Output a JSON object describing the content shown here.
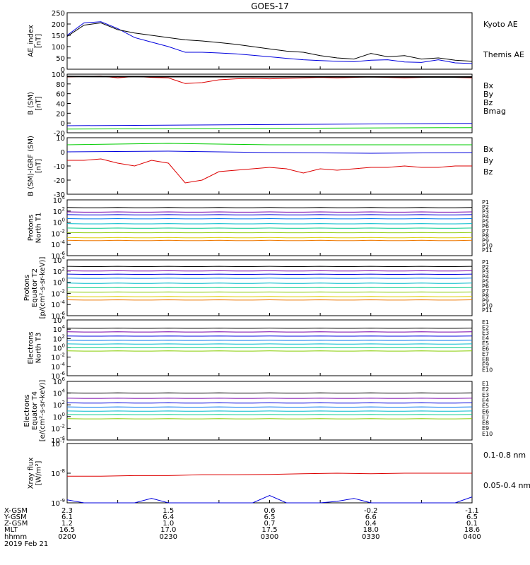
{
  "title": "GOES-17",
  "colors": {
    "black": "#000000",
    "blue": "#0000dd",
    "green": "#00cc00",
    "red": "#dd0000",
    "p": [
      "#000000",
      "#7700aa",
      "#0000dd",
      "#0077ee",
      "#00bbcc",
      "#00cc88",
      "#88cc00",
      "#ddcc00",
      "#ee7700",
      "#ee0000",
      "#aa0000"
    ],
    "e": [
      "#000000",
      "#7700aa",
      "#0000dd",
      "#0077ee",
      "#00bbcc",
      "#00cc88",
      "#88cc00",
      "#ddcc00",
      "#ee7700",
      "#ee0000"
    ]
  },
  "chart_data": [
    {
      "type": "line",
      "ylabel": [
        "AE_index",
        "[nT]"
      ],
      "ylim": [
        0,
        250
      ],
      "yticks": [
        "0",
        "50",
        "100",
        "150",
        "200",
        "250"
      ],
      "series": [
        {
          "name": "Kyoto AE",
          "color": "blue",
          "x": [
            0,
            5,
            10,
            15,
            20,
            25,
            30,
            35,
            40,
            45,
            50,
            55,
            60,
            65,
            70,
            75,
            80,
            85,
            90,
            95,
            100,
            105,
            110,
            115,
            120
          ],
          "y": [
            150,
            205,
            210,
            180,
            140,
            120,
            100,
            75,
            75,
            72,
            68,
            62,
            55,
            48,
            42,
            38,
            35,
            33,
            40,
            42,
            32,
            30,
            42,
            28,
            25
          ]
        },
        {
          "name": "Themis AE",
          "color": "black",
          "x": [
            0,
            5,
            10,
            15,
            20,
            25,
            30,
            35,
            40,
            45,
            50,
            55,
            60,
            65,
            70,
            75,
            80,
            85,
            90,
            95,
            100,
            105,
            110,
            115,
            120
          ],
          "y": [
            145,
            195,
            205,
            175,
            160,
            150,
            140,
            130,
            125,
            118,
            110,
            100,
            90,
            80,
            75,
            60,
            50,
            45,
            70,
            55,
            60,
            45,
            50,
            40,
            35
          ]
        }
      ]
    },
    {
      "type": "line",
      "ylabel": [
        "B (SM)",
        "[nT]"
      ],
      "ylim": [
        -25,
        100
      ],
      "yticks": [
        "-20",
        "0",
        "20",
        "40",
        "60",
        "80",
        "100"
      ],
      "series": [
        {
          "name": "Bx",
          "color": "blue",
          "x": [
            0,
            120
          ],
          "y": [
            -10,
            -5
          ]
        },
        {
          "name": "By",
          "color": "green",
          "x": [
            0,
            120
          ],
          "y": [
            -17,
            -14
          ]
        },
        {
          "name": "Bz",
          "color": "red",
          "x": [
            0,
            5,
            10,
            15,
            20,
            25,
            30,
            35,
            40,
            45,
            50,
            55,
            60,
            65,
            70,
            75,
            80,
            85,
            90,
            95,
            100,
            105,
            110,
            115,
            120
          ],
          "y": [
            94,
            95,
            96,
            92,
            95,
            93,
            92,
            80,
            82,
            88,
            90,
            91,
            90,
            91,
            92,
            93,
            92,
            93,
            94,
            93,
            92,
            93,
            94,
            93,
            92
          ]
        },
        {
          "name": "Bmag",
          "color": "black",
          "x": [
            0,
            120
          ],
          "y": [
            95,
            94
          ]
        }
      ]
    },
    {
      "type": "line",
      "ylabel": [
        "B (SM)-IGRF (SM)",
        "[nT]"
      ],
      "ylim": [
        -30,
        10
      ],
      "yticks": [
        "-30",
        "-20",
        "-10",
        "0",
        "10"
      ],
      "series": [
        {
          "name": "Bx",
          "color": "blue",
          "x": [
            0,
            30,
            60,
            90,
            120
          ],
          "y": [
            0,
            0.5,
            -0.5,
            -1,
            -0.5
          ]
        },
        {
          "name": "By",
          "color": "green",
          "x": [
            0,
            30,
            60,
            90,
            120
          ],
          "y": [
            5,
            6,
            5,
            5,
            5
          ]
        },
        {
          "name": "Bz",
          "color": "red",
          "x": [
            0,
            5,
            10,
            15,
            20,
            25,
            30,
            35,
            40,
            45,
            50,
            55,
            60,
            65,
            70,
            75,
            80,
            85,
            90,
            95,
            100,
            105,
            110,
            115,
            120
          ],
          "y": [
            -6,
            -6,
            -5,
            -8,
            -10,
            -6,
            -8,
            -22,
            -20,
            -14,
            -13,
            -12,
            -11,
            -12,
            -15,
            -12,
            -13,
            -12,
            -11,
            -11,
            -10,
            -11,
            -11,
            -10,
            -10
          ]
        }
      ]
    },
    {
      "type": "line",
      "log": true,
      "ylabel": [
        "Protons",
        "North T1"
      ],
      "ylim": [
        -6,
        4
      ],
      "yticks": [
        "10^-6",
        "10^-4",
        "10^-2",
        "10^0",
        "10^2",
        "10^4"
      ],
      "legend": [
        "P1",
        "P2",
        "P3",
        "P4",
        "P5",
        "P6",
        "P7",
        "P8",
        "P9",
        "P10",
        "P11"
      ],
      "levels": [
        2.6,
        1.8,
        1.3,
        0.6,
        -0.3,
        -1.1,
        -1.9,
        -2.8,
        -3.3
      ]
    },
    {
      "type": "line",
      "log": true,
      "ylabel": [
        "Protons",
        "Equator T2",
        "[p/(cm²-s-sr-keV)]"
      ],
      "ylim": [
        -6,
        4
      ],
      "yticks": [
        "10^-6",
        "10^-4",
        "10^-2",
        "10^0",
        "10^2",
        "10^4"
      ],
      "legend": [
        "P1",
        "P2",
        "P3",
        "P4",
        "P5",
        "P6",
        "P7",
        "P8",
        "P9",
        "P10",
        "P11"
      ],
      "levels": [
        2.8,
        2.0,
        1.4,
        0.7,
        -0.2,
        -1.0,
        -1.8,
        -2.6,
        -3.2
      ]
    },
    {
      "type": "line",
      "log": true,
      "ylabel": [
        "Electrons",
        "North T3"
      ],
      "ylim": [
        -6,
        6
      ],
      "yticks": [
        "10^-6",
        "10^-4",
        "10^-2",
        "10^0",
        "10^2",
        "10^4",
        "10^6"
      ],
      "legend": [
        "E1",
        "E2",
        "E3",
        "E4",
        "E5",
        "E6",
        "E7",
        "E8",
        "E9",
        "E10"
      ],
      "levels": [
        4.2,
        3.4,
        2.5,
        1.6,
        0.8,
        0.0,
        -0.7
      ]
    },
    {
      "type": "line",
      "log": true,
      "ylabel": [
        "Electrons",
        "Equator T4",
        "[e/(cm²-s-sr-keV)]"
      ],
      "ylim": [
        -4,
        6
      ],
      "yticks": [
        "10^-4",
        "10^-2",
        "10^0",
        "10^2",
        "10^4",
        "10^6"
      ],
      "legend": [
        "E1",
        "E2",
        "E3",
        "E4",
        "E5",
        "E6",
        "E7",
        "E8",
        "E9",
        "E10"
      ],
      "levels": [
        4.0,
        3.1,
        2.3,
        1.6,
        0.9,
        0.3,
        -0.4
      ]
    },
    {
      "type": "line",
      "log": true,
      "ylabel": [
        "Xray flux",
        "[W/m²]"
      ],
      "ylim": [
        -9,
        -7
      ],
      "yticks": [
        "10^-9",
        "10^-8",
        "10^-7"
      ],
      "series": [
        {
          "name": "0.1-0.8 nm",
          "color": "red",
          "x": [
            0,
            10,
            20,
            30,
            40,
            50,
            60,
            70,
            80,
            90,
            100,
            110,
            120
          ],
          "y": [
            -8.1,
            -8.1,
            -8.08,
            -8.08,
            -8.05,
            -8.05,
            -8.04,
            -8.02,
            -8.0,
            -8.02,
            -8.0,
            -8.0,
            -8.0
          ]
        },
        {
          "name": "0.05-0.4 nm",
          "color": "blue",
          "x": [
            0,
            5,
            10,
            15,
            20,
            25,
            30,
            35,
            40,
            45,
            50,
            55,
            60,
            65,
            70,
            75,
            80,
            85,
            90,
            95,
            100,
            105,
            110,
            115,
            120
          ],
          "y": [
            -8.9,
            -9,
            -9,
            -9,
            -9,
            -8.85,
            -9,
            -9,
            -9,
            -9,
            -9,
            -9,
            -8.75,
            -9,
            -9,
            -9,
            -8.95,
            -8.85,
            -9,
            -9,
            -9,
            -9,
            -9,
            -9,
            -8.8
          ]
        }
      ]
    }
  ],
  "axis": {
    "rows": [
      {
        "label": "X-GSM",
        "values": [
          "2.3",
          "1.5",
          "0.6",
          "-0.2",
          "-1.1"
        ]
      },
      {
        "label": "Y-GSM",
        "values": [
          "6.1",
          "6.4",
          "6.5",
          "6.6",
          "6.5"
        ]
      },
      {
        "label": "Z-GSM",
        "values": [
          "1.2",
          "1.0",
          "0.7",
          "0.4",
          "0.1"
        ]
      },
      {
        "label": "MLT",
        "values": [
          "16.5",
          "17.0",
          "17.5",
          "18.0",
          "18.6"
        ]
      },
      {
        "label": "hhmm",
        "values": [
          "0200",
          "0230",
          "0300",
          "0330",
          "0400"
        ]
      }
    ],
    "date": "2019 Feb 21"
  }
}
